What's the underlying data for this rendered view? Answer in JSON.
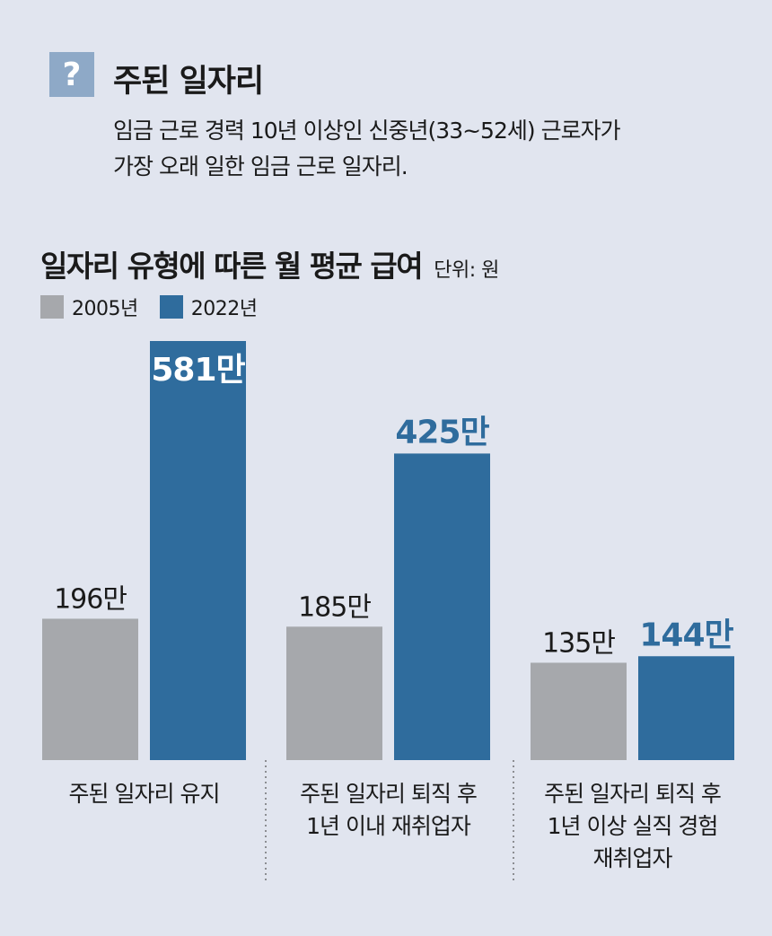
{
  "header": {
    "icon": "question-mark-icon",
    "icon_glyph": "?",
    "title": "주된 일자리",
    "description_lines": [
      "임금 근로 경력 10년 이상인 신중년(33~52세) 근로자가",
      "가장 오래 일한 임금 근로 일자리."
    ]
  },
  "colors": {
    "background": "#e1e5ef",
    "series_2005": "#a6a8ac",
    "series_2022": "#2f6c9d",
    "highlight_label": "#2f6c9d",
    "icon_bg": "#8ea9c7"
  },
  "chart_data": {
    "type": "bar",
    "title": "일자리 유형에 따른 월 평균 급여",
    "unit_label": "단위: 원",
    "legend_placement": "top-left",
    "grid": false,
    "ylim": [
      0,
      6000000
    ],
    "categories": [
      [
        "주된 일자리 유지"
      ],
      [
        "주된 일자리 퇴직 후",
        "1년 이내 재취업자"
      ],
      [
        "주된 일자리 퇴직 후",
        "1년 이상 실직 경험",
        "재취업자"
      ]
    ],
    "series": [
      {
        "name": "2005년",
        "color": "#a6a8ac",
        "values": [
          1960000,
          1850000,
          1350000
        ],
        "labels": [
          "196만",
          "185만",
          "135만"
        ]
      },
      {
        "name": "2022년",
        "color": "#2f6c9d",
        "values": [
          5810000,
          4250000,
          1440000
        ],
        "labels": [
          "581만",
          "425만",
          "144만"
        ]
      }
    ]
  }
}
